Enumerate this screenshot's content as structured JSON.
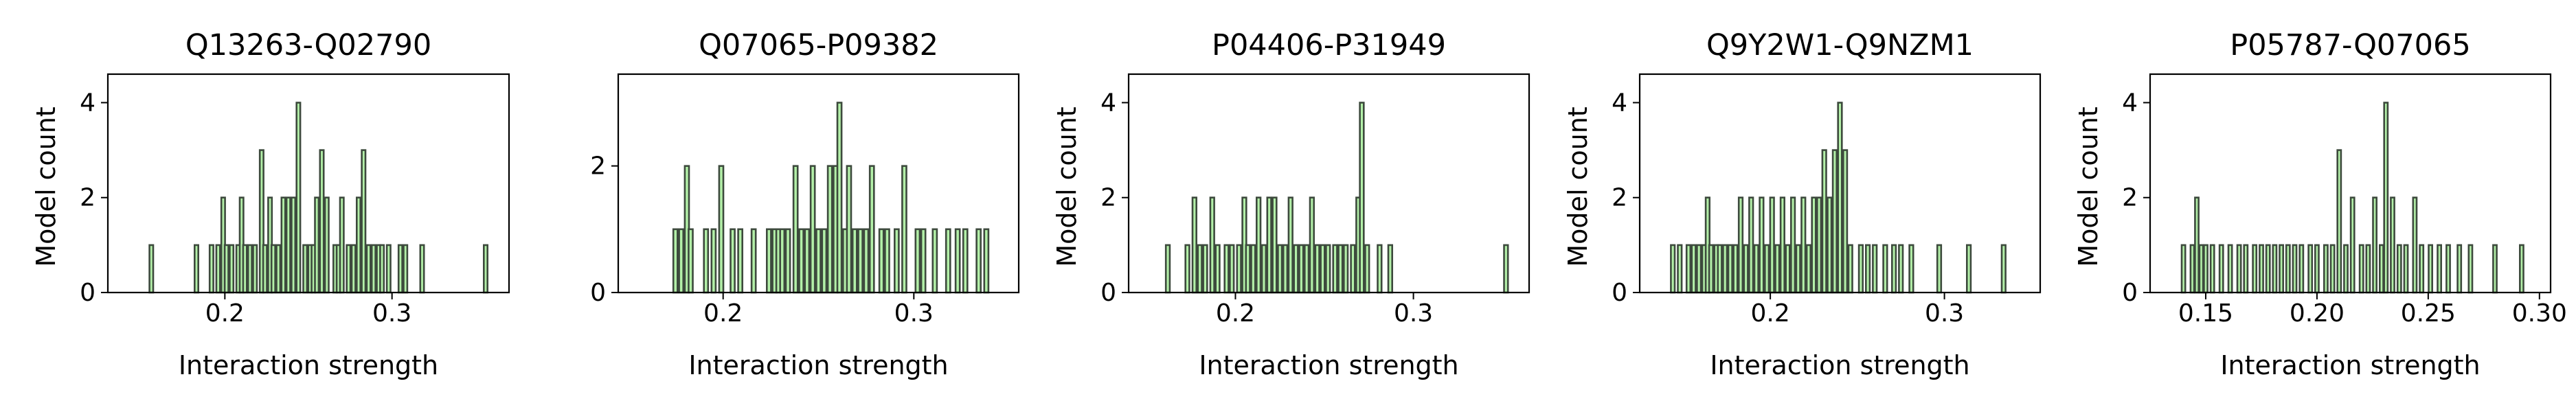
{
  "chart_data": [
    {
      "type": "bar",
      "title": "Q13263-Q02790",
      "xlabel": "Interaction strength",
      "ylabel": "Model count",
      "xlim": [
        0.13,
        0.37
      ],
      "ylim": [
        0,
        4.6
      ],
      "xticks": [
        0.2,
        0.3
      ],
      "xtick_labels": [
        "0.2",
        "0.3"
      ],
      "yticks": [
        0,
        2,
        4
      ],
      "ytick_labels": [
        "0",
        "2",
        "4"
      ],
      "bin_width": 0.0022,
      "fill_color": "#b3f0a8",
      "edge_color": "#3d4a3d",
      "bins": [
        [
          0.156,
          1
        ],
        [
          0.183,
          1
        ],
        [
          0.192,
          1
        ],
        [
          0.196,
          1
        ],
        [
          0.199,
          2
        ],
        [
          0.201,
          1
        ],
        [
          0.204,
          1
        ],
        [
          0.208,
          1
        ],
        [
          0.21,
          2
        ],
        [
          0.212,
          1
        ],
        [
          0.215,
          1
        ],
        [
          0.218,
          1
        ],
        [
          0.222,
          3
        ],
        [
          0.224,
          1
        ],
        [
          0.227,
          2
        ],
        [
          0.229,
          1
        ],
        [
          0.232,
          1
        ],
        [
          0.235,
          2
        ],
        [
          0.238,
          2
        ],
        [
          0.241,
          2
        ],
        [
          0.244,
          4
        ],
        [
          0.248,
          1
        ],
        [
          0.251,
          1
        ],
        [
          0.253,
          1
        ],
        [
          0.255,
          2
        ],
        [
          0.258,
          3
        ],
        [
          0.261,
          2
        ],
        [
          0.266,
          1
        ],
        [
          0.268,
          1
        ],
        [
          0.27,
          2
        ],
        [
          0.274,
          1
        ],
        [
          0.277,
          1
        ],
        [
          0.28,
          2
        ],
        [
          0.283,
          3
        ],
        [
          0.286,
          1
        ],
        [
          0.289,
          1
        ],
        [
          0.292,
          1
        ],
        [
          0.294,
          1
        ],
        [
          0.298,
          1
        ],
        [
          0.305,
          1
        ],
        [
          0.308,
          1
        ],
        [
          0.318,
          1
        ],
        [
          0.356,
          1
        ]
      ]
    },
    {
      "type": "bar",
      "title": "Q07065-P09382",
      "xlabel": "Interaction strength",
      "ylabel": "",
      "xlim": [
        0.145,
        0.355
      ],
      "ylim": [
        0,
        3.45
      ],
      "xticks": [
        0.2,
        0.3
      ],
      "xtick_labels": [
        "0.2",
        "0.3"
      ],
      "yticks": [
        0,
        2
      ],
      "ytick_labels": [
        "0",
        "2"
      ],
      "bin_width": 0.0022,
      "fill_color": "#b3f0a8",
      "edge_color": "#3d4a3d",
      "bins": [
        [
          0.175,
          1
        ],
        [
          0.178,
          1
        ],
        [
          0.181,
          2
        ],
        [
          0.183,
          1
        ],
        [
          0.191,
          1
        ],
        [
          0.195,
          1
        ],
        [
          0.199,
          2
        ],
        [
          0.205,
          1
        ],
        [
          0.209,
          1
        ],
        [
          0.216,
          1
        ],
        [
          0.224,
          1
        ],
        [
          0.227,
          1
        ],
        [
          0.229,
          1
        ],
        [
          0.231,
          1
        ],
        [
          0.234,
          1
        ],
        [
          0.238,
          2
        ],
        [
          0.241,
          1
        ],
        [
          0.244,
          1
        ],
        [
          0.247,
          2
        ],
        [
          0.25,
          1
        ],
        [
          0.253,
          1
        ],
        [
          0.256,
          2
        ],
        [
          0.259,
          2
        ],
        [
          0.261,
          3
        ],
        [
          0.264,
          1
        ],
        [
          0.266,
          2
        ],
        [
          0.269,
          1
        ],
        [
          0.272,
          1
        ],
        [
          0.275,
          1
        ],
        [
          0.278,
          2
        ],
        [
          0.283,
          1
        ],
        [
          0.286,
          1
        ],
        [
          0.291,
          1
        ],
        [
          0.295,
          2
        ],
        [
          0.302,
          1
        ],
        [
          0.305,
          1
        ],
        [
          0.311,
          1
        ],
        [
          0.318,
          1
        ],
        [
          0.323,
          1
        ],
        [
          0.327,
          1
        ],
        [
          0.334,
          1
        ],
        [
          0.338,
          1
        ]
      ]
    },
    {
      "type": "bar",
      "title": "P04406-P31949",
      "xlabel": "Interaction strength",
      "ylabel": "Model count",
      "xlim": [
        0.14,
        0.365
      ],
      "ylim": [
        0,
        4.6
      ],
      "xticks": [
        0.2,
        0.3
      ],
      "xtick_labels": [
        "0.2",
        "0.3"
      ],
      "yticks": [
        0,
        2,
        4
      ],
      "ytick_labels": [
        "0",
        "2",
        "4"
      ],
      "bin_width": 0.0022,
      "fill_color": "#b3f0a8",
      "edge_color": "#3d4a3d",
      "bins": [
        [
          0.162,
          1
        ],
        [
          0.173,
          1
        ],
        [
          0.177,
          2
        ],
        [
          0.18,
          1
        ],
        [
          0.183,
          1
        ],
        [
          0.187,
          2
        ],
        [
          0.19,
          1
        ],
        [
          0.195,
          1
        ],
        [
          0.198,
          1
        ],
        [
          0.202,
          1
        ],
        [
          0.205,
          2
        ],
        [
          0.207,
          1
        ],
        [
          0.21,
          1
        ],
        [
          0.213,
          2
        ],
        [
          0.216,
          1
        ],
        [
          0.219,
          2
        ],
        [
          0.222,
          2
        ],
        [
          0.225,
          1
        ],
        [
          0.228,
          1
        ],
        [
          0.231,
          2
        ],
        [
          0.234,
          1
        ],
        [
          0.237,
          1
        ],
        [
          0.24,
          1
        ],
        [
          0.243,
          2
        ],
        [
          0.246,
          1
        ],
        [
          0.249,
          1
        ],
        [
          0.252,
          1
        ],
        [
          0.256,
          1
        ],
        [
          0.259,
          1
        ],
        [
          0.262,
          1
        ],
        [
          0.266,
          1
        ],
        [
          0.269,
          2
        ],
        [
          0.271,
          4
        ],
        [
          0.274,
          1
        ],
        [
          0.281,
          1
        ],
        [
          0.287,
          1
        ],
        [
          0.352,
          1
        ]
      ]
    },
    {
      "type": "bar",
      "title": "Q9Y2W1-Q9NZM1",
      "xlabel": "Interaction strength",
      "ylabel": "Model count",
      "xlim": [
        0.125,
        0.355
      ],
      "ylim": [
        0,
        4.6
      ],
      "xticks": [
        0.2,
        0.3
      ],
      "xtick_labels": [
        "0.2",
        "0.3"
      ],
      "yticks": [
        0,
        2,
        4
      ],
      "ytick_labels": [
        "0",
        "2",
        "4"
      ],
      "bin_width": 0.0022,
      "fill_color": "#b3f0a8",
      "edge_color": "#3d4a3d",
      "bins": [
        [
          0.144,
          1
        ],
        [
          0.148,
          1
        ],
        [
          0.153,
          1
        ],
        [
          0.156,
          1
        ],
        [
          0.159,
          1
        ],
        [
          0.162,
          1
        ],
        [
          0.164,
          2
        ],
        [
          0.166,
          1
        ],
        [
          0.169,
          1
        ],
        [
          0.171,
          1
        ],
        [
          0.174,
          1
        ],
        [
          0.177,
          1
        ],
        [
          0.18,
          1
        ],
        [
          0.183,
          2
        ],
        [
          0.186,
          1
        ],
        [
          0.189,
          2
        ],
        [
          0.192,
          1
        ],
        [
          0.195,
          2
        ],
        [
          0.198,
          1
        ],
        [
          0.201,
          2
        ],
        [
          0.204,
          1
        ],
        [
          0.207,
          2
        ],
        [
          0.21,
          1
        ],
        [
          0.213,
          2
        ],
        [
          0.216,
          1
        ],
        [
          0.219,
          2
        ],
        [
          0.222,
          1
        ],
        [
          0.225,
          2
        ],
        [
          0.228,
          2
        ],
        [
          0.231,
          3
        ],
        [
          0.234,
          2
        ],
        [
          0.237,
          3
        ],
        [
          0.24,
          4
        ],
        [
          0.243,
          3
        ],
        [
          0.246,
          1
        ],
        [
          0.252,
          1
        ],
        [
          0.256,
          1
        ],
        [
          0.26,
          1
        ],
        [
          0.266,
          1
        ],
        [
          0.271,
          1
        ],
        [
          0.275,
          1
        ],
        [
          0.281,
          1
        ],
        [
          0.297,
          1
        ],
        [
          0.314,
          1
        ],
        [
          0.334,
          1
        ]
      ]
    },
    {
      "type": "bar",
      "title": "P05787-Q07065",
      "xlabel": "Interaction strength",
      "ylabel": "Model count",
      "xlim": [
        0.125,
        0.305
      ],
      "ylim": [
        0,
        4.6
      ],
      "xticks": [
        0.15,
        0.2,
        0.25,
        0.3
      ],
      "xtick_labels": [
        "0.15",
        "0.20",
        "0.25",
        "0.30"
      ],
      "yticks": [
        0,
        2,
        4
      ],
      "ytick_labels": [
        "0",
        "2",
        "4"
      ],
      "bin_width": 0.0016,
      "fill_color": "#b3f0a8",
      "edge_color": "#3d4a3d",
      "bins": [
        [
          0.14,
          1
        ],
        [
          0.144,
          1
        ],
        [
          0.146,
          2
        ],
        [
          0.148,
          1
        ],
        [
          0.15,
          1
        ],
        [
          0.153,
          1
        ],
        [
          0.157,
          1
        ],
        [
          0.161,
          1
        ],
        [
          0.165,
          1
        ],
        [
          0.168,
          1
        ],
        [
          0.172,
          1
        ],
        [
          0.175,
          1
        ],
        [
          0.178,
          1
        ],
        [
          0.181,
          1
        ],
        [
          0.184,
          1
        ],
        [
          0.187,
          1
        ],
        [
          0.19,
          1
        ],
        [
          0.193,
          1
        ],
        [
          0.197,
          1
        ],
        [
          0.2,
          1
        ],
        [
          0.204,
          1
        ],
        [
          0.207,
          1
        ],
        [
          0.21,
          3
        ],
        [
          0.213,
          1
        ],
        [
          0.216,
          2
        ],
        [
          0.22,
          1
        ],
        [
          0.223,
          1
        ],
        [
          0.226,
          2
        ],
        [
          0.229,
          1
        ],
        [
          0.231,
          4
        ],
        [
          0.234,
          2
        ],
        [
          0.237,
          1
        ],
        [
          0.24,
          1
        ],
        [
          0.244,
          2
        ],
        [
          0.247,
          1
        ],
        [
          0.251,
          1
        ],
        [
          0.255,
          1
        ],
        [
          0.259,
          1
        ],
        [
          0.264,
          1
        ],
        [
          0.269,
          1
        ],
        [
          0.28,
          1
        ],
        [
          0.292,
          1
        ]
      ]
    }
  ]
}
